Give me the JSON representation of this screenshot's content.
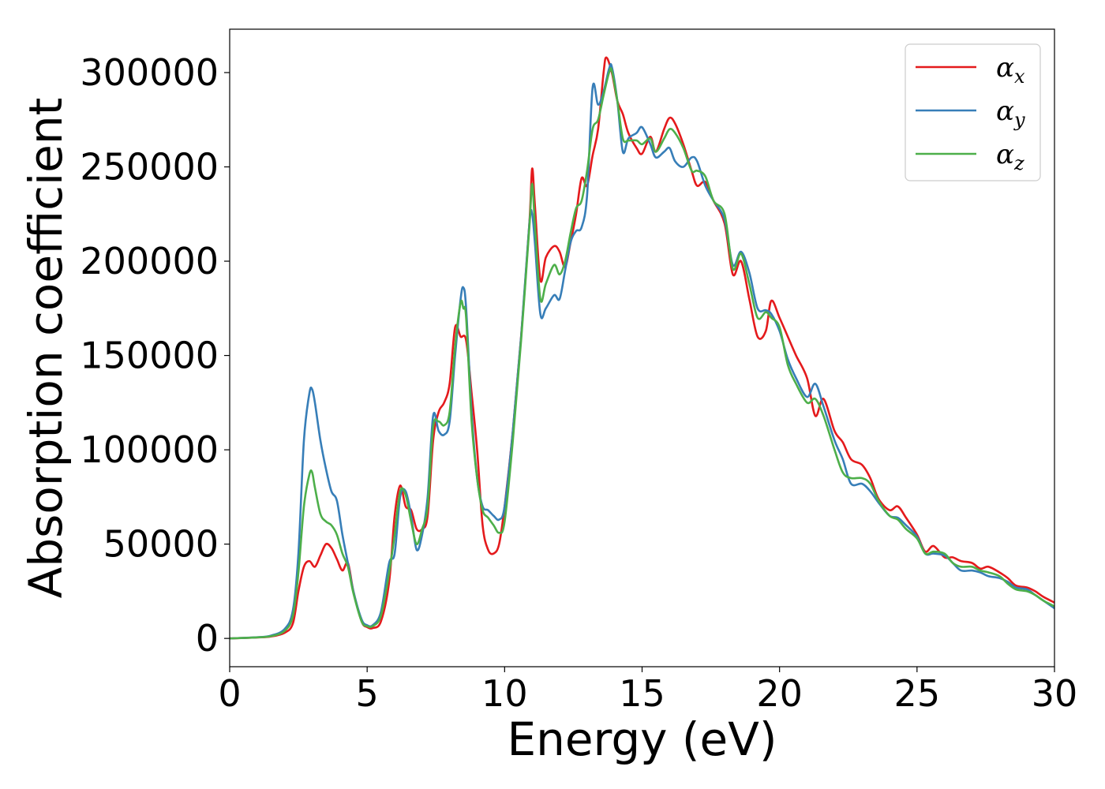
{
  "chart_data": {
    "type": "line",
    "title": "",
    "xlabel": "Energy (eV)",
    "ylabel": "Absorption coefficient",
    "xlim": [
      0,
      30
    ],
    "ylim": [
      -15000,
      323000
    ],
    "xticks": [
      0,
      5,
      10,
      15,
      20,
      25,
      30
    ],
    "xtick_labels": [
      "0",
      "5",
      "10",
      "15",
      "20",
      "25",
      "30"
    ],
    "yticks": [
      0,
      50000,
      100000,
      150000,
      200000,
      250000,
      300000
    ],
    "ytick_labels": [
      "0",
      "50000",
      "100000",
      "150000",
      "200000",
      "250000",
      "300000"
    ],
    "grid": false,
    "legend_position": "top-right",
    "series": [
      {
        "name": "α_x",
        "legend_symbol": "α",
        "legend_sub": "x",
        "color": "#e41a1c",
        "x": [
          0,
          1,
          1.5,
          2,
          2.3,
          2.5,
          2.7,
          2.9,
          3.1,
          3.3,
          3.5,
          3.7,
          3.9,
          4.1,
          4.3,
          4.5,
          4.8,
          5.0,
          5.2,
          5.5,
          5.8,
          6.0,
          6.2,
          6.4,
          6.6,
          6.8,
          7.0,
          7.2,
          7.4,
          7.6,
          7.8,
          8.0,
          8.2,
          8.4,
          8.6,
          8.8,
          9.0,
          9.2,
          9.4,
          9.6,
          9.8,
          10.0,
          10.3,
          10.6,
          10.9,
          11.0,
          11.1,
          11.3,
          11.5,
          11.8,
          12.0,
          12.2,
          12.4,
          12.6,
          12.8,
          13.0,
          13.2,
          13.4,
          13.6,
          13.7,
          13.9,
          14.1,
          14.3,
          14.5,
          14.8,
          15.0,
          15.3,
          15.5,
          15.8,
          16.0,
          16.2,
          16.5,
          16.8,
          17.0,
          17.3,
          17.6,
          18.0,
          18.3,
          18.6,
          18.9,
          19.2,
          19.5,
          19.7,
          20.0,
          20.3,
          20.6,
          21.0,
          21.3,
          21.6,
          22.0,
          22.3,
          22.6,
          23.0,
          23.3,
          23.6,
          24.0,
          24.3,
          24.6,
          25.0,
          25.3,
          25.6,
          26.0,
          26.3,
          26.6,
          27.0,
          27.3,
          27.6,
          28.0,
          28.3,
          28.6,
          29.0,
          29.3,
          29.6,
          30.0
        ],
        "y": [
          0,
          500,
          1000,
          3000,
          8000,
          25000,
          38000,
          41000,
          38000,
          44000,
          50000,
          48000,
          42000,
          36000,
          40000,
          25000,
          9000,
          6000,
          5500,
          9000,
          30000,
          65000,
          81000,
          70000,
          68000,
          58000,
          58000,
          65000,
          105000,
          120000,
          125000,
          135000,
          165000,
          160000,
          158000,
          130000,
          100000,
          60000,
          47000,
          45000,
          50000,
          70000,
          110000,
          160000,
          220000,
          249000,
          230000,
          190000,
          202000,
          208000,
          205000,
          197000,
          210000,
          225000,
          244000,
          240000,
          256000,
          270000,
          300000,
          308000,
          300000,
          285000,
          278000,
          268000,
          260000,
          257000,
          266000,
          258000,
          270000,
          276000,
          273000,
          262000,
          248000,
          240000,
          242000,
          232000,
          220000,
          193000,
          200000,
          180000,
          160000,
          163000,
          179000,
          170000,
          160000,
          150000,
          138000,
          118000,
          127000,
          110000,
          104000,
          95000,
          92000,
          85000,
          74000,
          68000,
          70000,
          64000,
          55000,
          46000,
          49000,
          43000,
          43000,
          41000,
          40000,
          37000,
          38000,
          35000,
          32000,
          28000,
          27000,
          25000,
          22000,
          19000
        ]
      },
      {
        "name": "α_y",
        "legend_symbol": "α",
        "legend_sub": "y",
        "color": "#377eb8",
        "x": [
          0,
          1,
          1.5,
          2,
          2.3,
          2.5,
          2.7,
          2.9,
          3.0,
          3.1,
          3.3,
          3.5,
          3.7,
          3.9,
          4.1,
          4.3,
          4.5,
          4.8,
          5.0,
          5.2,
          5.5,
          5.8,
          6.0,
          6.2,
          6.4,
          6.6,
          6.8,
          7.0,
          7.2,
          7.4,
          7.6,
          7.8,
          8.0,
          8.2,
          8.4,
          8.5,
          8.6,
          8.8,
          9.0,
          9.2,
          9.4,
          9.6,
          9.8,
          10.0,
          10.3,
          10.6,
          10.9,
          11.0,
          11.1,
          11.3,
          11.5,
          11.8,
          12.0,
          12.2,
          12.4,
          12.6,
          12.8,
          13.0,
          13.2,
          13.4,
          13.6,
          13.8,
          13.9,
          14.1,
          14.3,
          14.5,
          14.8,
          15.0,
          15.3,
          15.5,
          15.8,
          16.0,
          16.2,
          16.5,
          16.8,
          17.0,
          17.3,
          17.6,
          18.0,
          18.3,
          18.6,
          18.9,
          19.2,
          19.5,
          19.7,
          20.0,
          20.3,
          20.6,
          21.0,
          21.3,
          21.6,
          22.0,
          22.3,
          22.6,
          23.0,
          23.3,
          23.6,
          24.0,
          24.3,
          24.6,
          25.0,
          25.3,
          25.6,
          26.0,
          26.3,
          26.6,
          27.0,
          27.3,
          27.6,
          28.0,
          28.3,
          28.6,
          29.0,
          29.3,
          29.6,
          30.0
        ],
        "y": [
          0,
          600,
          1500,
          5000,
          15000,
          45000,
          105000,
          130000,
          132000,
          125000,
          105000,
          90000,
          78000,
          73000,
          55000,
          40000,
          25000,
          10000,
          7000,
          7000,
          14000,
          40000,
          45000,
          75000,
          78000,
          65000,
          47000,
          55000,
          75000,
          118000,
          110000,
          108000,
          115000,
          150000,
          180000,
          186000,
          175000,
          120000,
          85000,
          70000,
          68000,
          65000,
          63000,
          70000,
          110000,
          160000,
          220000,
          225000,
          210000,
          172000,
          175000,
          182000,
          180000,
          195000,
          210000,
          216000,
          218000,
          235000,
          292000,
          283000,
          290000,
          302000,
          303000,
          285000,
          258000,
          265000,
          268000,
          271000,
          262000,
          255000,
          258000,
          260000,
          253000,
          250000,
          255000,
          253000,
          240000,
          232000,
          222000,
          198000,
          205000,
          194000,
          175000,
          174000,
          172000,
          163000,
          148000,
          138000,
          128000,
          135000,
          123000,
          105000,
          95000,
          82000,
          82000,
          78000,
          72000,
          65000,
          64000,
          60000,
          54000,
          45000,
          45000,
          44000,
          40000,
          36000,
          36000,
          35000,
          33000,
          32000,
          30000,
          27000,
          26000,
          23000,
          20000,
          16000
        ]
      },
      {
        "name": "α_z",
        "legend_symbol": "α",
        "legend_sub": "z",
        "color": "#4daf4a",
        "x": [
          0,
          1,
          1.5,
          2,
          2.3,
          2.5,
          2.7,
          2.9,
          3.0,
          3.1,
          3.3,
          3.5,
          3.7,
          3.9,
          4.1,
          4.3,
          4.5,
          4.8,
          5.0,
          5.2,
          5.5,
          5.8,
          6.0,
          6.2,
          6.4,
          6.6,
          6.8,
          7.0,
          7.2,
          7.4,
          7.6,
          7.8,
          8.0,
          8.2,
          8.4,
          8.5,
          8.6,
          8.8,
          9.0,
          9.2,
          9.4,
          9.6,
          9.8,
          10.0,
          10.3,
          10.6,
          10.9,
          11.0,
          11.1,
          11.3,
          11.5,
          11.8,
          12.0,
          12.2,
          12.4,
          12.6,
          12.8,
          13.0,
          13.2,
          13.4,
          13.6,
          13.8,
          13.9,
          14.1,
          14.3,
          14.5,
          14.8,
          15.0,
          15.3,
          15.5,
          15.8,
          16.0,
          16.2,
          16.5,
          16.8,
          17.0,
          17.3,
          17.6,
          18.0,
          18.3,
          18.6,
          18.9,
          19.2,
          19.5,
          19.7,
          20.0,
          20.3,
          20.6,
          21.0,
          21.3,
          21.6,
          22.0,
          22.3,
          22.6,
          23.0,
          23.3,
          23.6,
          24.0,
          24.3,
          24.6,
          25.0,
          25.3,
          25.6,
          26.0,
          26.3,
          26.6,
          27.0,
          27.3,
          27.6,
          28.0,
          28.3,
          28.6,
          29.0,
          29.3,
          29.6,
          30.0
        ],
        "y": [
          0,
          550,
          1200,
          4000,
          12000,
          35000,
          70000,
          87000,
          88000,
          80000,
          66000,
          62000,
          60000,
          55000,
          45000,
          38000,
          24000,
          9000,
          6500,
          6500,
          12000,
          35000,
          55000,
          78000,
          76000,
          62000,
          50000,
          58000,
          70000,
          112000,
          115000,
          113000,
          120000,
          155000,
          178000,
          175000,
          170000,
          115000,
          85000,
          68000,
          64000,
          60000,
          56000,
          62000,
          105000,
          158000,
          218000,
          241000,
          220000,
          180000,
          188000,
          198000,
          193000,
          200000,
          215000,
          228000,
          232000,
          248000,
          270000,
          275000,
          288000,
          300000,
          301000,
          285000,
          265000,
          264000,
          264000,
          262000,
          265000,
          258000,
          265000,
          270000,
          268000,
          260000,
          248000,
          248000,
          245000,
          232000,
          225000,
          196000,
          204000,
          188000,
          170000,
          173000,
          170000,
          165000,
          145000,
          135000,
          125000,
          127000,
          118000,
          100000,
          88000,
          85000,
          85000,
          82000,
          73000,
          65000,
          63000,
          58000,
          53000,
          45000,
          46000,
          45000,
          40000,
          38000,
          38000,
          36000,
          35000,
          33000,
          29000,
          26000,
          25000,
          23000,
          20000,
          17000
        ]
      }
    ]
  }
}
